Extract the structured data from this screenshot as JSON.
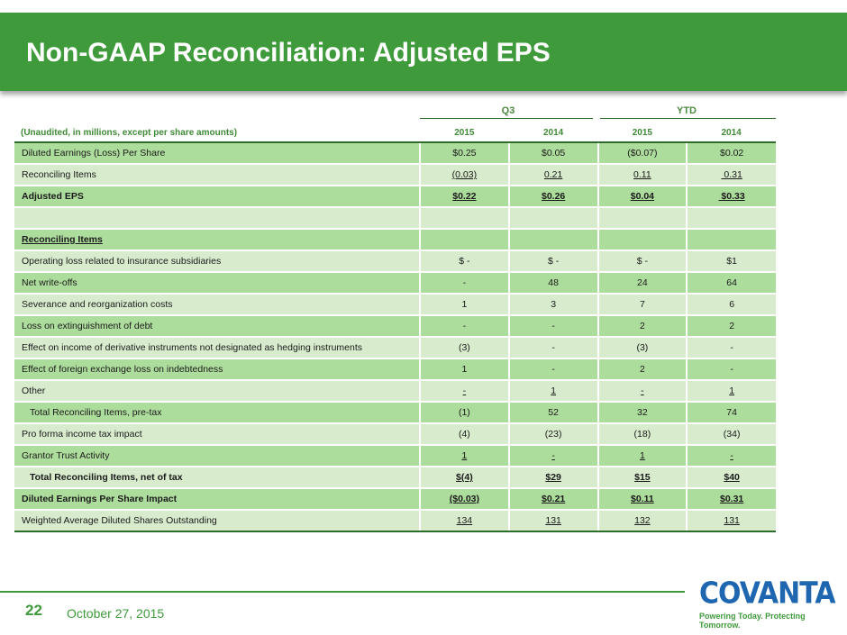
{
  "title": "Non-GAAP Reconciliation: Adjusted EPS",
  "groups": {
    "q3": "Q3",
    "ytd": "YTD"
  },
  "header": {
    "label": "(Unaudited, in millions, except per share amounts)",
    "cols": [
      "2015",
      "2014",
      "2015",
      "2014"
    ]
  },
  "rows": [
    {
      "label": "Diluted Earnings (Loss) Per Share",
      "values": [
        "$0.25",
        "$0.05",
        "($0.07)",
        "$0.02"
      ]
    },
    {
      "label": "Reconciling Items",
      "values": [
        "(0.03)",
        "0.21",
        "0.11",
        " 0.31"
      ]
    },
    {
      "label": "Adjusted EPS",
      "values": [
        "$0.22",
        "$0.26",
        "$0.04",
        " $0.33"
      ]
    },
    {
      "label": "",
      "values": [
        "",
        "",
        "",
        ""
      ]
    },
    {
      "label": "Reconciling Items",
      "values": [
        "",
        "",
        "",
        ""
      ]
    },
    {
      "label": "Operating loss related to insurance subsidiaries",
      "values": [
        "$ -",
        "$ -",
        "$ -",
        "$1"
      ]
    },
    {
      "label": "Net write-offs",
      "values": [
        "-",
        "48",
        "24",
        "64"
      ]
    },
    {
      "label": "Severance and reorganization costs",
      "values": [
        "1",
        "3",
        "7",
        "6"
      ]
    },
    {
      "label": "Loss on extinguishment of debt",
      "values": [
        "-",
        "-",
        "2",
        "2"
      ]
    },
    {
      "label": "Effect on income of derivative instruments not designated as hedging instruments",
      "values": [
        "(3)",
        "-",
        "(3)",
        "-"
      ]
    },
    {
      "label": "Effect of foreign exchange loss on indebtedness",
      "values": [
        "1",
        "-",
        "2",
        "-"
      ]
    },
    {
      "label": "Other",
      "values": [
        "-",
        "1",
        "-",
        "1"
      ]
    },
    {
      "label": "Total Reconciling Items, pre-tax",
      "values": [
        "(1)",
        "52",
        "32",
        "74"
      ]
    },
    {
      "label": "Pro forma income tax impact",
      "values": [
        "(4)",
        "(23)",
        "(18)",
        "(34)"
      ]
    },
    {
      "label": "Grantor Trust Activity",
      "values": [
        "1",
        "-",
        "1",
        "-"
      ]
    },
    {
      "label": "Total Reconciling Items, net of tax",
      "values": [
        "$(4)",
        "$29",
        "$15",
        "$40"
      ]
    },
    {
      "label": "Diluted Earnings Per Share Impact",
      "values": [
        "($0.03)",
        "$0.21",
        "$0.11",
        "$0.31"
      ]
    },
    {
      "label": "Weighted Average Diluted Shares Outstanding",
      "values": [
        "134",
        "131",
        "132",
        "131"
      ]
    }
  ],
  "footer": {
    "page": "22",
    "date": "October 27, 2015",
    "logo": "COVANTA",
    "tagline": "Powering Today. Protecting Tomorrow."
  },
  "colors": {
    "brand_green": "#3f9a3b",
    "row_dark": "#addd9c",
    "row_light": "#d8eccd",
    "logo_blue": "#1f66b0"
  }
}
